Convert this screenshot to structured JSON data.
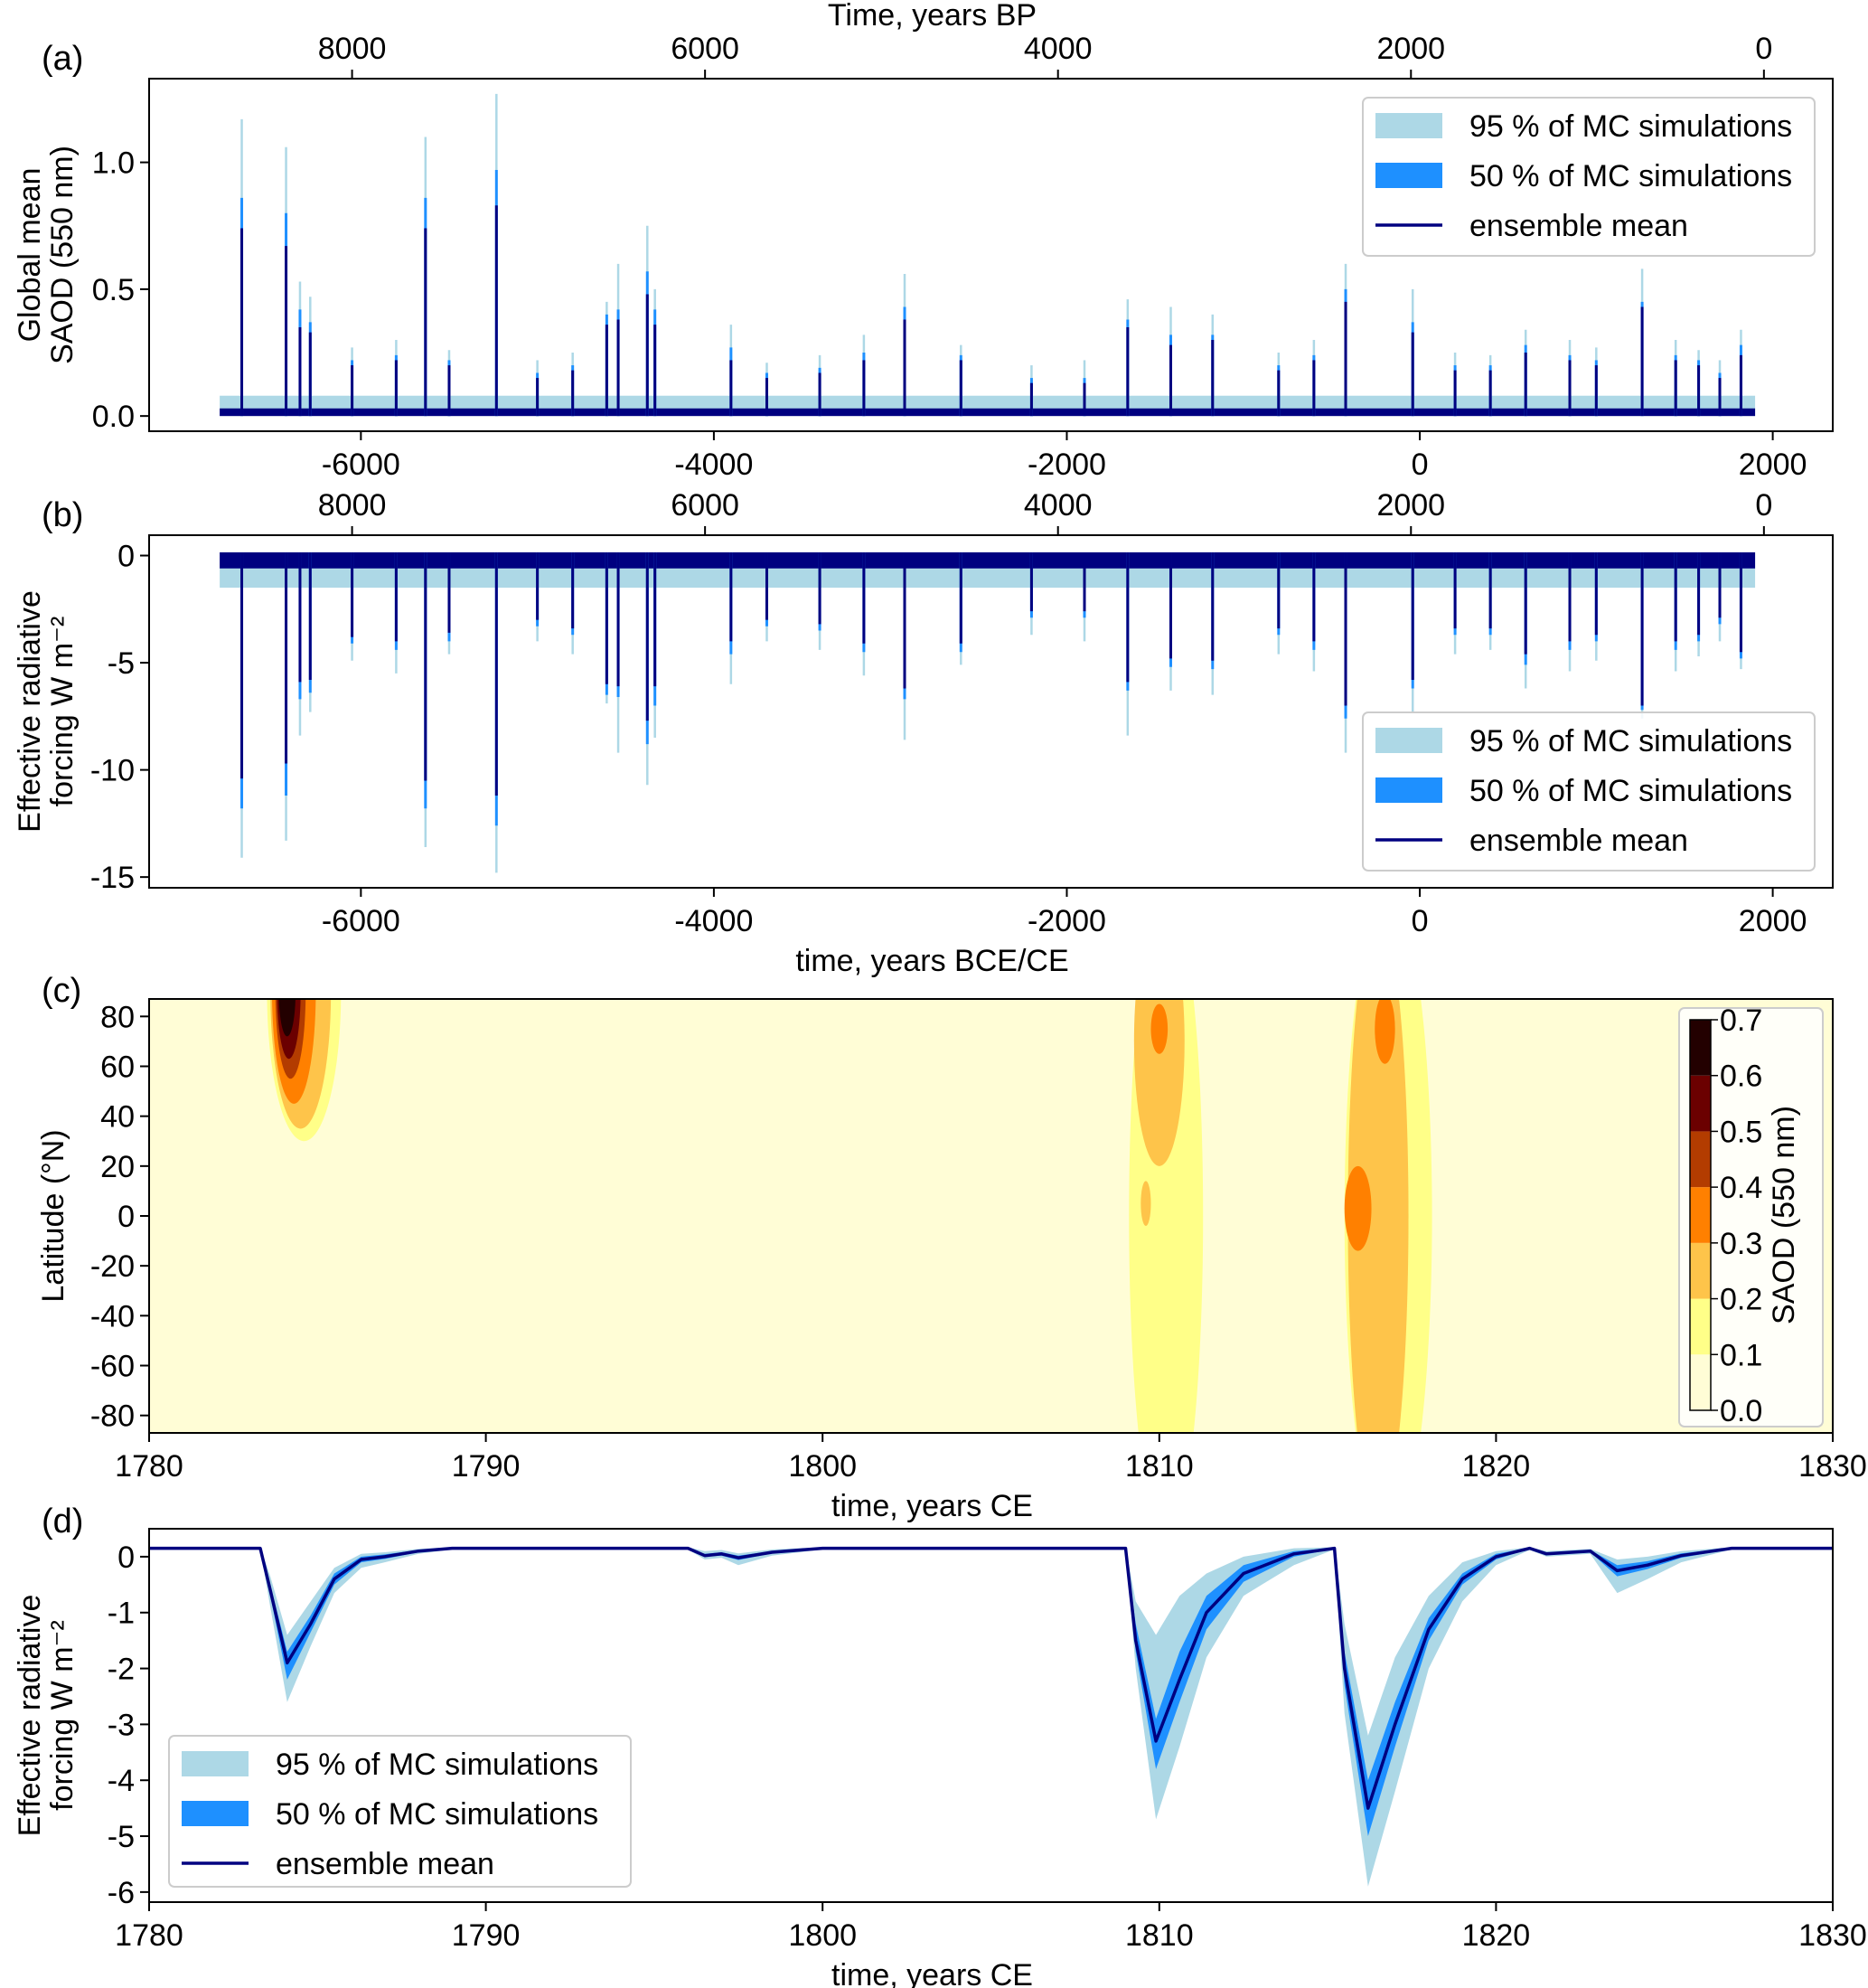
{
  "colors": {
    "p95": "#add8e6",
    "p50": "#1e90ff",
    "mean": "#000080"
  },
  "legend": {
    "p95": "95 % of MC simulations",
    "p50": "50 % of MC simulations",
    "mean": "ensemble mean"
  },
  "chart_data": [
    {
      "panel": "(a)",
      "type": "line",
      "legend_position": "upper-right",
      "xlabel_top": "Time, years BP",
      "ylabel": [
        "Global mean",
        "SAOD (550 nm)"
      ],
      "xlim": [
        -7200,
        2340
      ],
      "ylim": [
        -0.06,
        1.33
      ],
      "xticks": [
        -6000,
        -4000,
        -2000,
        0,
        2000
      ],
      "xticklabels": [
        "-6000",
        "-4000",
        "-2000",
        "0",
        "2000"
      ],
      "top_xticks_bp": [
        8000,
        6000,
        4000,
        2000,
        0
      ],
      "top_xticklabels": [
        "8000",
        "6000",
        "4000",
        "2000",
        "0"
      ],
      "yticks": [
        0,
        0.5,
        1.0
      ],
      "yticklabels": [
        "0.0",
        "0.5",
        "1.0"
      ],
      "series_span": [
        -6800,
        1900
      ],
      "background": {
        "mean": 0.03,
        "p95": 0.08
      },
      "spike_fields": [
        "year",
        "mean",
        "p50_upper",
        "p95_upper"
      ],
      "spikes": [
        [
          -6675,
          0.74,
          0.86,
          1.17
        ],
        [
          -6424,
          0.67,
          0.8,
          1.06
        ],
        [
          -6345,
          0.35,
          0.42,
          0.53
        ],
        [
          -6287,
          0.33,
          0.37,
          0.47
        ],
        [
          -6050,
          0.2,
          0.22,
          0.27
        ],
        [
          -5800,
          0.22,
          0.24,
          0.3
        ],
        [
          -5634,
          0.74,
          0.86,
          1.1
        ],
        [
          -5500,
          0.2,
          0.22,
          0.26
        ],
        [
          -5232,
          0.83,
          0.97,
          1.27
        ],
        [
          -5000,
          0.15,
          0.17,
          0.22
        ],
        [
          -4800,
          0.18,
          0.2,
          0.25
        ],
        [
          -4607,
          0.36,
          0.4,
          0.45
        ],
        [
          -4542,
          0.38,
          0.42,
          0.6
        ],
        [
          -4377,
          0.48,
          0.57,
          0.75
        ],
        [
          -4334,
          0.36,
          0.42,
          0.5
        ],
        [
          -3903,
          0.22,
          0.27,
          0.36
        ],
        [
          -3700,
          0.15,
          0.17,
          0.21
        ],
        [
          -3400,
          0.17,
          0.19,
          0.24
        ],
        [
          -3150,
          0.22,
          0.25,
          0.32
        ],
        [
          -2919,
          0.38,
          0.43,
          0.56
        ],
        [
          -2600,
          0.22,
          0.24,
          0.28
        ],
        [
          -2200,
          0.13,
          0.15,
          0.2
        ],
        [
          -1900,
          0.13,
          0.15,
          0.22
        ],
        [
          -1655,
          0.35,
          0.38,
          0.46
        ],
        [
          -1411,
          0.28,
          0.32,
          0.43
        ],
        [
          -1174,
          0.3,
          0.32,
          0.4
        ],
        [
          -800,
          0.18,
          0.2,
          0.25
        ],
        [
          -600,
          0.22,
          0.24,
          0.3
        ],
        [
          -420,
          0.45,
          0.5,
          0.6
        ],
        [
          -40,
          0.33,
          0.37,
          0.5
        ],
        [
          200,
          0.18,
          0.2,
          0.25
        ],
        [
          400,
          0.18,
          0.2,
          0.24
        ],
        [
          600,
          0.25,
          0.28,
          0.34
        ],
        [
          850,
          0.22,
          0.24,
          0.3
        ],
        [
          1000,
          0.2,
          0.22,
          0.27
        ],
        [
          1260,
          0.43,
          0.45,
          0.58
        ],
        [
          1450,
          0.22,
          0.24,
          0.3
        ],
        [
          1580,
          0.2,
          0.22,
          0.26
        ],
        [
          1700,
          0.15,
          0.17,
          0.22
        ],
        [
          1820,
          0.24,
          0.28,
          0.34
        ]
      ]
    },
    {
      "panel": "(b)",
      "type": "line",
      "legend_position": "lower-right",
      "xlabel": "time, years BCE/CE",
      "ylabel": [
        "Effective radiative",
        "forcing W m⁻²"
      ],
      "xlim": [
        -7200,
        2340
      ],
      "ylim": [
        -15.5,
        0.95
      ],
      "xticks": [
        -6000,
        -4000,
        -2000,
        0,
        2000
      ],
      "xticklabels": [
        "-6000",
        "-4000",
        "-2000",
        "0",
        "2000"
      ],
      "top_xticks_bp": [
        8000,
        6000,
        4000,
        2000,
        0
      ],
      "top_xticklabels": [
        "8000",
        "6000",
        "4000",
        "2000",
        "0"
      ],
      "yticks": [
        0,
        -5,
        -10,
        -15
      ],
      "yticklabels": [
        "0",
        "-5",
        "-10",
        "-15"
      ],
      "series_span": [
        -6800,
        1900
      ],
      "background": {
        "base": 0.15,
        "mean": -0.6,
        "p95": -1.5
      },
      "spike_fields": [
        "year",
        "mean",
        "p50_lower",
        "p95_lower"
      ],
      "spikes": [
        [
          -6675,
          -10.4,
          -11.8,
          -14.1
        ],
        [
          -6424,
          -9.7,
          -11.2,
          -13.3
        ],
        [
          -6345,
          -5.9,
          -6.7,
          -8.4
        ],
        [
          -6287,
          -5.8,
          -6.4,
          -7.3
        ],
        [
          -6050,
          -3.8,
          -4.1,
          -4.9
        ],
        [
          -5800,
          -4.0,
          -4.4,
          -5.5
        ],
        [
          -5634,
          -10.5,
          -11.8,
          -13.6
        ],
        [
          -5500,
          -3.6,
          -4.0,
          -4.6
        ],
        [
          -5232,
          -11.2,
          -12.6,
          -14.8
        ],
        [
          -5000,
          -3.0,
          -3.3,
          -4.0
        ],
        [
          -4800,
          -3.4,
          -3.7,
          -4.6
        ],
        [
          -4607,
          -6.0,
          -6.5,
          -6.9
        ],
        [
          -4542,
          -6.1,
          -6.6,
          -9.2
        ],
        [
          -4377,
          -7.7,
          -8.8,
          -10.7
        ],
        [
          -4334,
          -6.1,
          -7.0,
          -8.5
        ],
        [
          -3903,
          -4.0,
          -4.6,
          -6.0
        ],
        [
          -3700,
          -3.0,
          -3.3,
          -4.0
        ],
        [
          -3400,
          -3.2,
          -3.5,
          -4.4
        ],
        [
          -3150,
          -4.1,
          -4.5,
          -5.6
        ],
        [
          -2919,
          -6.2,
          -6.7,
          -8.6
        ],
        [
          -2600,
          -4.1,
          -4.5,
          -5.1
        ],
        [
          -2200,
          -2.6,
          -2.9,
          -3.7
        ],
        [
          -1900,
          -2.6,
          -2.9,
          -4.0
        ],
        [
          -1655,
          -5.9,
          -6.3,
          -8.4
        ],
        [
          -1411,
          -4.8,
          -5.2,
          -6.3
        ],
        [
          -1174,
          -4.9,
          -5.3,
          -6.5
        ],
        [
          -800,
          -3.4,
          -3.7,
          -4.6
        ],
        [
          -600,
          -4.0,
          -4.4,
          -5.4
        ],
        [
          -420,
          -7.0,
          -7.6,
          -9.2
        ],
        [
          -40,
          -5.8,
          -6.2,
          -7.3
        ],
        [
          200,
          -3.4,
          -3.7,
          -4.6
        ],
        [
          400,
          -3.4,
          -3.7,
          -4.4
        ],
        [
          600,
          -4.6,
          -5.1,
          -6.2
        ],
        [
          850,
          -4.0,
          -4.4,
          -5.4
        ],
        [
          1000,
          -3.7,
          -4.0,
          -4.9
        ],
        [
          1260,
          -7.0,
          -7.2,
          -7.6
        ],
        [
          1450,
          -4.0,
          -4.4,
          -5.4
        ],
        [
          1580,
          -3.7,
          -4.0,
          -4.7
        ],
        [
          1700,
          -2.9,
          -3.2,
          -4.0
        ],
        [
          1820,
          -4.5,
          -4.8,
          -5.3
        ]
      ]
    },
    {
      "panel": "(c)",
      "type": "heatmap",
      "xlabel": "time, years CE",
      "ylabel": "Latitude (°N)",
      "colorbar_label": "SAOD (550 nm)",
      "xlim": [
        1780,
        1830
      ],
      "ylim": [
        -87,
        87
      ],
      "xticks": [
        1780,
        1790,
        1800,
        1810,
        1820,
        1830
      ],
      "xticklabels": [
        "1780",
        "1790",
        "1800",
        "1810",
        "1820",
        "1830"
      ],
      "yticks": [
        80,
        60,
        40,
        20,
        0,
        -20,
        -40,
        -60,
        -80
      ],
      "yticklabels": [
        "80",
        "60",
        "40",
        "20",
        "0",
        "-20",
        "-40",
        "-60",
        "-80"
      ],
      "levels": [
        0.0,
        0.1,
        0.2,
        0.3,
        0.4,
        0.5,
        0.6,
        0.7
      ],
      "level_labels": [
        "0.0",
        "0.1",
        "0.2",
        "0.3",
        "0.4",
        "0.5",
        "0.6",
        "0.7"
      ],
      "level_colors": [
        "#fffdd6",
        "#ffff88",
        "#fec44a",
        "#ff8000",
        "#b33c00",
        "#6b0000",
        "#230000"
      ],
      "region_fields": [
        "level_index",
        "time_center",
        "lat_center",
        "time_halfwidth",
        "lat_halfwidth"
      ],
      "regions": [
        [
          1,
          1784.6,
          90,
          1.1,
          60
        ],
        [
          2,
          1784.5,
          90,
          0.9,
          55
        ],
        [
          3,
          1784.3,
          90,
          0.65,
          45
        ],
        [
          4,
          1784.2,
          90,
          0.45,
          35
        ],
        [
          5,
          1784.15,
          90,
          0.35,
          27
        ],
        [
          6,
          1784.1,
          90,
          0.25,
          18
        ],
        [
          1,
          1810.2,
          0,
          1.1,
          130
        ],
        [
          2,
          1810.0,
          70,
          0.75,
          50
        ],
        [
          2,
          1809.6,
          5,
          0.15,
          9
        ],
        [
          3,
          1810.0,
          75,
          0.25,
          10
        ],
        [
          1,
          1816.8,
          0,
          1.3,
          130
        ],
        [
          2,
          1816.5,
          0,
          0.9,
          120
        ],
        [
          3,
          1815.9,
          3,
          0.4,
          17
        ],
        [
          3,
          1816.7,
          75,
          0.3,
          14
        ]
      ]
    },
    {
      "panel": "(d)",
      "type": "area",
      "legend_position": "lower-left",
      "xlabel": "time, years CE",
      "ylabel": [
        "Effective radiative",
        "forcing W m⁻²"
      ],
      "xlim": [
        1780,
        1830
      ],
      "ylim": [
        -6.18,
        0.5
      ],
      "xticks": [
        1780,
        1790,
        1800,
        1810,
        1820,
        1830
      ],
      "xticklabels": [
        "1780",
        "1790",
        "1800",
        "1810",
        "1820",
        "1830"
      ],
      "yticks": [
        0,
        -1,
        -2,
        -3,
        -4,
        -5,
        -6
      ],
      "yticklabels": [
        "0",
        "-1",
        "-2",
        "-3",
        "-4",
        "-5",
        "-6"
      ],
      "point_fields": [
        "year",
        "mean",
        "p50_lower",
        "p50_upper",
        "p95_lower",
        "p95_upper"
      ],
      "points": [
        [
          1780,
          0.15,
          0.14,
          0.16,
          0.13,
          0.17
        ],
        [
          1783.3,
          0.15,
          0.14,
          0.16,
          0.13,
          0.17
        ],
        [
          1783.6,
          -0.6,
          -0.7,
          -0.5,
          -0.9,
          -0.35
        ],
        [
          1784.1,
          -1.9,
          -2.2,
          -1.7,
          -2.6,
          -1.4
        ],
        [
          1784.8,
          -1.2,
          -1.35,
          -1.05,
          -1.6,
          -0.8
        ],
        [
          1785.5,
          -0.4,
          -0.5,
          -0.3,
          -0.65,
          -0.2
        ],
        [
          1786.3,
          -0.05,
          -0.1,
          0.0,
          -0.2,
          0.05
        ],
        [
          1787,
          0.0,
          -0.04,
          0.04,
          -0.1,
          0.08
        ],
        [
          1788,
          0.1,
          0.08,
          0.12,
          0.05,
          0.14
        ],
        [
          1789,
          0.15,
          0.14,
          0.16,
          0.13,
          0.17
        ],
        [
          1796,
          0.15,
          0.14,
          0.16,
          0.13,
          0.17
        ],
        [
          1796.5,
          0.02,
          0.0,
          0.05,
          -0.05,
          0.1
        ],
        [
          1797,
          0.05,
          0.02,
          0.08,
          -0.02,
          0.12
        ],
        [
          1797.5,
          -0.02,
          -0.06,
          0.02,
          -0.15,
          0.06
        ],
        [
          1798.5,
          0.08,
          0.06,
          0.1,
          0.02,
          0.13
        ],
        [
          1800,
          0.15,
          0.14,
          0.16,
          0.13,
          0.17
        ],
        [
          1809.0,
          0.15,
          0.14,
          0.16,
          0.13,
          0.17
        ],
        [
          1809.3,
          -1.5,
          -1.7,
          -1.2,
          -2.0,
          -0.8
        ],
        [
          1809.9,
          -3.3,
          -3.8,
          -2.9,
          -4.7,
          -1.4
        ],
        [
          1810.6,
          -2.2,
          -2.6,
          -1.7,
          -3.4,
          -0.7
        ],
        [
          1811.4,
          -1.0,
          -1.3,
          -0.7,
          -1.8,
          -0.3
        ],
        [
          1812.5,
          -0.3,
          -0.45,
          -0.15,
          -0.7,
          0.0
        ],
        [
          1814,
          0.05,
          0.0,
          0.1,
          -0.15,
          0.15
        ],
        [
          1815.2,
          0.15,
          0.14,
          0.16,
          0.13,
          0.17
        ],
        [
          1815.5,
          -2.0,
          -2.3,
          -1.7,
          -2.8,
          -1.2
        ],
        [
          1816.2,
          -4.5,
          -5.0,
          -4.0,
          -5.9,
          -3.2
        ],
        [
          1817,
          -3.0,
          -3.4,
          -2.6,
          -4.2,
          -1.8
        ],
        [
          1818,
          -1.3,
          -1.5,
          -1.1,
          -2.0,
          -0.7
        ],
        [
          1819,
          -0.4,
          -0.5,
          -0.3,
          -0.8,
          -0.1
        ],
        [
          1820,
          0.0,
          -0.05,
          0.05,
          -0.15,
          0.1
        ],
        [
          1821,
          0.15,
          0.14,
          0.16,
          0.12,
          0.17
        ],
        [
          1821.5,
          0.05,
          0.03,
          0.07,
          0.0,
          0.1
        ],
        [
          1822.8,
          0.1,
          0.08,
          0.12,
          0.05,
          0.14
        ],
        [
          1823.6,
          -0.25,
          -0.35,
          -0.15,
          -0.65,
          -0.05
        ],
        [
          1824.5,
          -0.15,
          -0.22,
          -0.08,
          -0.4,
          0.0
        ],
        [
          1825.5,
          0.02,
          -0.02,
          0.06,
          -0.1,
          0.1
        ],
        [
          1827,
          0.15,
          0.14,
          0.16,
          0.13,
          0.17
        ],
        [
          1830,
          0.15,
          0.14,
          0.16,
          0.13,
          0.17
        ]
      ]
    }
  ]
}
